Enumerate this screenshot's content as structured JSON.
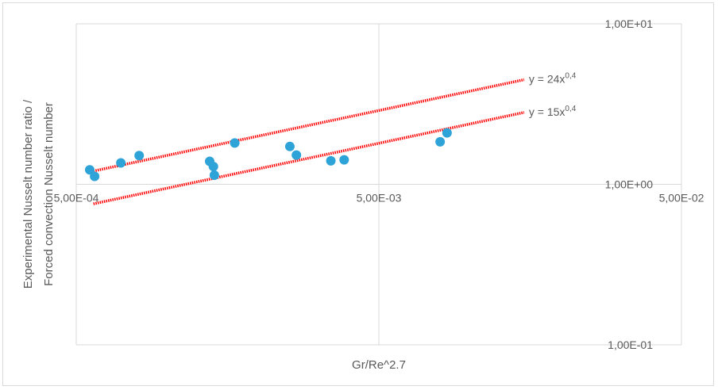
{
  "chart_data": {
    "type": "scatter",
    "title": "",
    "xlabel": "Gr/Re^2.7",
    "ylabel_lines": [
      "Experimental Nusselt number ratio /",
      "Forced convection Nusselt number"
    ],
    "x_scale": "log",
    "y_scale": "log",
    "xlim": [
      0.0005,
      0.05
    ],
    "ylim": [
      0.1,
      10
    ],
    "x_ticks": [
      {
        "value": 0.0005,
        "label": "5,00E-04"
      },
      {
        "value": 0.005,
        "label": "5,00E-03"
      },
      {
        "value": 0.05,
        "label": "5,00E-02"
      }
    ],
    "y_ticks": [
      {
        "value": 10,
        "label": "1,00E+01"
      },
      {
        "value": 1,
        "label": "1,00E+00"
      },
      {
        "value": 0.1,
        "label": "1,00E-01"
      }
    ],
    "grid": true,
    "series": [
      {
        "marker_color": "#2ea3d8",
        "points": [
          {
            "x": 0.000554,
            "y": 1.23
          },
          {
            "x": 0.000575,
            "y": 1.12
          },
          {
            "x": 0.000702,
            "y": 1.36
          },
          {
            "x": 0.000807,
            "y": 1.51
          },
          {
            "x": 0.00138,
            "y": 1.39
          },
          {
            "x": 0.00142,
            "y": 1.29
          },
          {
            "x": 0.00143,
            "y": 1.14
          },
          {
            "x": 0.00167,
            "y": 1.81
          },
          {
            "x": 0.00254,
            "y": 1.72
          },
          {
            "x": 0.00267,
            "y": 1.52
          },
          {
            "x": 0.00347,
            "y": 1.4
          },
          {
            "x": 0.00384,
            "y": 1.42
          },
          {
            "x": 0.00797,
            "y": 1.84
          },
          {
            "x": 0.0084,
            "y": 2.09
          }
        ]
      }
    ],
    "trendlines": [
      {
        "label": "y = 24x",
        "exponent_label": "0,4",
        "coefficient": 24,
        "exponent": 0.4,
        "x_range": [
          0.00057,
          0.0151
        ],
        "color": "#ff0000"
      },
      {
        "label": "y = 15x",
        "exponent_label": "0,4",
        "coefficient": 15,
        "exponent": 0.4,
        "x_range": [
          0.00057,
          0.0151
        ],
        "color": "#ff0000"
      }
    ],
    "colors": {
      "grid": "#d9d9d9",
      "text": "#595959",
      "markers": "#2ea3d8",
      "trendline": "#ff0000"
    }
  }
}
